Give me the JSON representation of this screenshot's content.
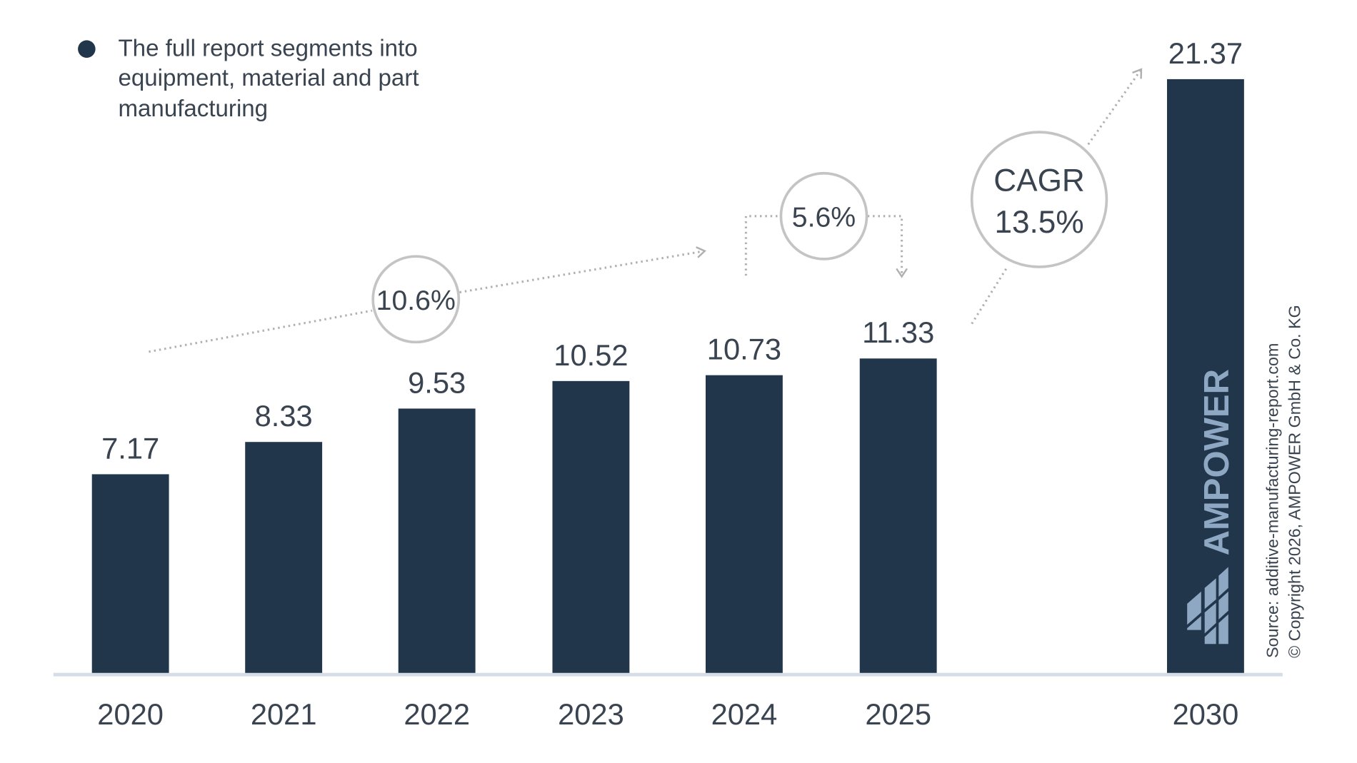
{
  "note": {
    "text_lines": [
      "The full report segments into",
      "equipment, material and part",
      "manufacturing"
    ]
  },
  "chart_data": {
    "type": "bar",
    "categories": [
      "2020",
      "2021",
      "2022",
      "2023",
      "2024",
      "2025",
      "2030"
    ],
    "values": [
      7.17,
      8.33,
      9.53,
      10.52,
      10.73,
      11.33,
      21.37
    ],
    "value_labels": [
      "7.17",
      "8.33",
      "9.53",
      "10.52",
      "10.73",
      "11.33",
      "21.37"
    ],
    "title": "",
    "xlabel": "",
    "ylabel": "",
    "ylim": [
      0,
      22
    ],
    "grid": false,
    "bar_color": "#22364b",
    "axis_color": "#d5dde6",
    "annotations": {
      "growth_2020_2024": "10.6%",
      "growth_2024_2025": "5.6%",
      "cagr_label": "CAGR",
      "cagr_value": "13.5%"
    }
  },
  "branding": {
    "logo_text": "AMPOWER",
    "logo_color": "#8ea8c3",
    "source": "Source: additive-manufacturing-report.com",
    "copyright": "© Copyright 2026, AMPOWER GmbH & Co. KG"
  }
}
